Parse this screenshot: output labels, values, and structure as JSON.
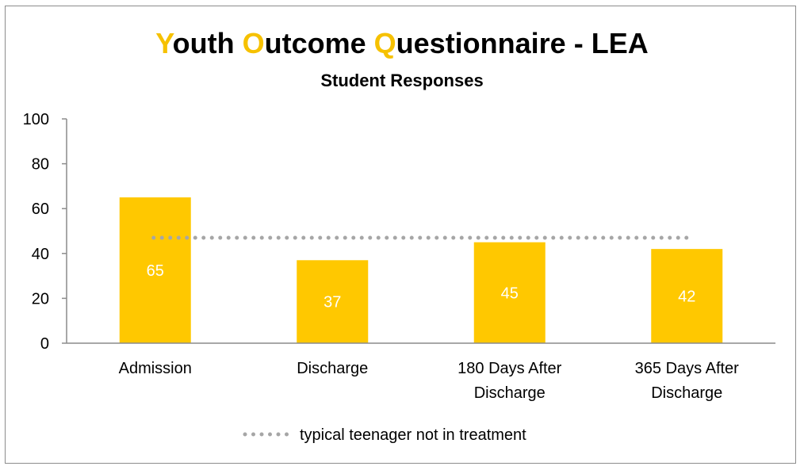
{
  "chart_data": {
    "type": "bar",
    "title_parts": [
      {
        "initial": "Y",
        "rest": "outh "
      },
      {
        "initial": "O",
        "rest": "utcome "
      },
      {
        "initial": "Q",
        "rest": "uestionnaire - LEA"
      }
    ],
    "subtitle": "Student Responses",
    "categories": [
      [
        "Admission"
      ],
      [
        "Discharge"
      ],
      [
        "180 Days After",
        "Discharge"
      ],
      [
        "365 Days After",
        "Discharge"
      ]
    ],
    "values": [
      65,
      37,
      45,
      42
    ],
    "data_labels": [
      "65",
      "37",
      "45",
      "42"
    ],
    "ylim": [
      0,
      100
    ],
    "yticks": [
      0,
      20,
      40,
      60,
      80,
      100
    ],
    "reference_line": {
      "name": "typical teenager not in treatment",
      "value": 47,
      "style": "dotted",
      "color": "#a6a6a6"
    },
    "bar_color": "#ffc800",
    "title_accent_color": "#f6c100",
    "label_color": "#ffffff",
    "grid": false,
    "legend_position": "bottom"
  }
}
